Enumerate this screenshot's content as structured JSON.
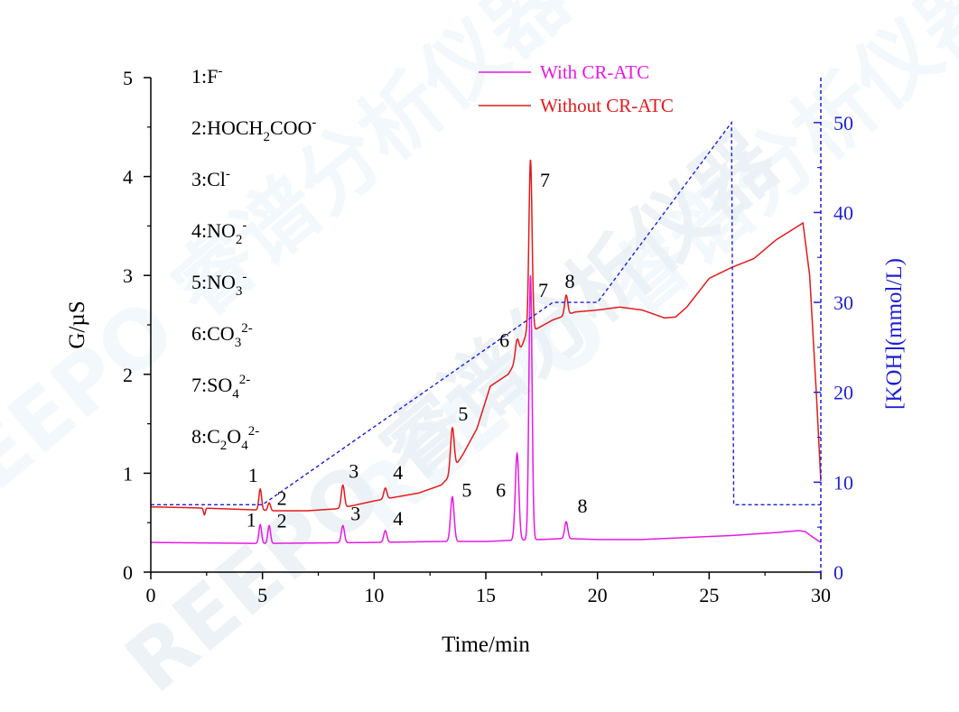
{
  "chart_data": {
    "type": "line",
    "xlabel": "Time/min",
    "ylabel": "G/µS",
    "y2label": "[KOH](mmol/L)",
    "xlim": [
      0,
      30
    ],
    "ylim": [
      0,
      5
    ],
    "y2lim": [
      0,
      55
    ],
    "xticks": [
      "0",
      "5",
      "10",
      "15",
      "20",
      "25",
      "30"
    ],
    "yticks": [
      "0",
      "1",
      "2",
      "3",
      "4",
      "5"
    ],
    "y2ticks": [
      "0",
      "10",
      "20",
      "30",
      "40",
      "50"
    ],
    "legend_position": "top",
    "legend": [
      "With CR-ATC",
      "Without CR-ATC"
    ],
    "watermark": "REEPO 睿谱分析仪器",
    "ion_list": [
      {
        "n": "1:F",
        "sub": "",
        "sup": "-"
      },
      {
        "n": "2:HOCH",
        "sub": "2",
        "tail": "COO",
        "sup": "-"
      },
      {
        "n": "3:Cl",
        "sub": "",
        "sup": "-"
      },
      {
        "n": "4:NO",
        "sub": "2",
        "sup": "-"
      },
      {
        "n": "5:NO",
        "sub": "3",
        "sup": "-"
      },
      {
        "n": "6:CO",
        "sub": "3",
        "sup": "2-"
      },
      {
        "n": "7:SO",
        "sub": "4",
        "sup": "2-"
      },
      {
        "n": "8:C",
        "sub": "2",
        "tail": "O",
        "sub2": "4",
        "sup": "2-"
      }
    ],
    "series": [
      {
        "name": "With CR-ATC",
        "color": "#e619e6",
        "axis": "left",
        "baseline": [
          [
            0,
            0.3
          ],
          [
            5,
            0.29
          ],
          [
            10,
            0.3
          ],
          [
            13,
            0.31
          ],
          [
            15,
            0.31
          ],
          [
            16,
            0.32
          ],
          [
            17.5,
            0.33
          ],
          [
            18.5,
            0.34
          ],
          [
            20,
            0.33
          ],
          [
            22,
            0.33
          ],
          [
            24,
            0.35
          ],
          [
            26,
            0.37
          ],
          [
            28,
            0.4
          ],
          [
            29,
            0.42
          ],
          [
            29.3,
            0.41
          ],
          [
            29.6,
            0.36
          ],
          [
            30,
            0.3
          ]
        ],
        "peaks": [
          {
            "label": "1",
            "t": 4.9,
            "height": 0.48,
            "w": 0.06
          },
          {
            "label": "2",
            "t": 5.3,
            "height": 0.47,
            "w": 0.06
          },
          {
            "label": "3",
            "t": 8.6,
            "height": 0.47,
            "w": 0.07
          },
          {
            "label": "4",
            "t": 10.5,
            "height": 0.42,
            "w": 0.07
          },
          {
            "label": "5",
            "t": 13.5,
            "height": 0.76,
            "w": 0.08
          },
          {
            "label": "6",
            "t": 16.4,
            "height": 1.2,
            "w": 0.08
          },
          {
            "label": "7",
            "t": 17.0,
            "height": 3.0,
            "w": 0.07
          },
          {
            "label": "8",
            "t": 18.6,
            "height": 0.51,
            "w": 0.07
          }
        ]
      },
      {
        "name": "Without CR-ATC",
        "color": "#e41a1c",
        "axis": "left",
        "baseline": [
          [
            0,
            0.66
          ],
          [
            2,
            0.65
          ],
          [
            4.6,
            0.63
          ],
          [
            5.5,
            0.62
          ],
          [
            7,
            0.62
          ],
          [
            8.3,
            0.64
          ],
          [
            9,
            0.67
          ],
          [
            10,
            0.72
          ],
          [
            11,
            0.76
          ],
          [
            12,
            0.8
          ],
          [
            13,
            0.88
          ],
          [
            13.3,
            0.95
          ],
          [
            14,
            1.2
          ],
          [
            14.6,
            1.45
          ],
          [
            15.2,
            1.88
          ],
          [
            16,
            2.0
          ],
          [
            16.4,
            2.15
          ],
          [
            16.8,
            2.4
          ],
          [
            17.2,
            2.45
          ],
          [
            18,
            2.55
          ],
          [
            19,
            2.63
          ],
          [
            20,
            2.65
          ],
          [
            21,
            2.68
          ],
          [
            22,
            2.65
          ],
          [
            23,
            2.57
          ],
          [
            23.5,
            2.58
          ],
          [
            24,
            2.68
          ],
          [
            25,
            2.97
          ],
          [
            26,
            3.08
          ],
          [
            27,
            3.17
          ],
          [
            28,
            3.36
          ],
          [
            29.2,
            3.53
          ],
          [
            29.5,
            3.0
          ],
          [
            29.8,
            1.8
          ],
          [
            30,
            0.92
          ]
        ],
        "peaks": [
          {
            "label": "1",
            "t": 4.9,
            "height": 0.84,
            "w": 0.06
          },
          {
            "label": "2",
            "t": 5.3,
            "height": 0.7,
            "w": 0.06
          },
          {
            "label": "3",
            "t": 8.6,
            "height": 0.88,
            "w": 0.07
          },
          {
            "label": "4",
            "t": 10.5,
            "height": 0.85,
            "w": 0.07
          },
          {
            "label": "5",
            "t": 13.5,
            "height": 1.46,
            "w": 0.08
          },
          {
            "label": "6",
            "t": 16.4,
            "height": 2.35,
            "w": 0.08
          },
          {
            "label": "7",
            "t": 17.0,
            "height": 4.17,
            "w": 0.07
          },
          {
            "label": "8",
            "t": 18.6,
            "height": 2.8,
            "w": 0.07
          }
        ],
        "dips": [
          {
            "t": 2.4,
            "depth": 0.58
          }
        ]
      },
      {
        "name": "KOH gradient",
        "color": "#1f1fd6",
        "axis": "right",
        "style": "dashed",
        "points": [
          [
            0,
            7.5
          ],
          [
            5,
            7.5
          ],
          [
            18,
            30
          ],
          [
            20,
            30
          ],
          [
            26,
            50
          ],
          [
            26.1,
            7.5
          ],
          [
            30,
            7.5
          ]
        ]
      }
    ]
  }
}
